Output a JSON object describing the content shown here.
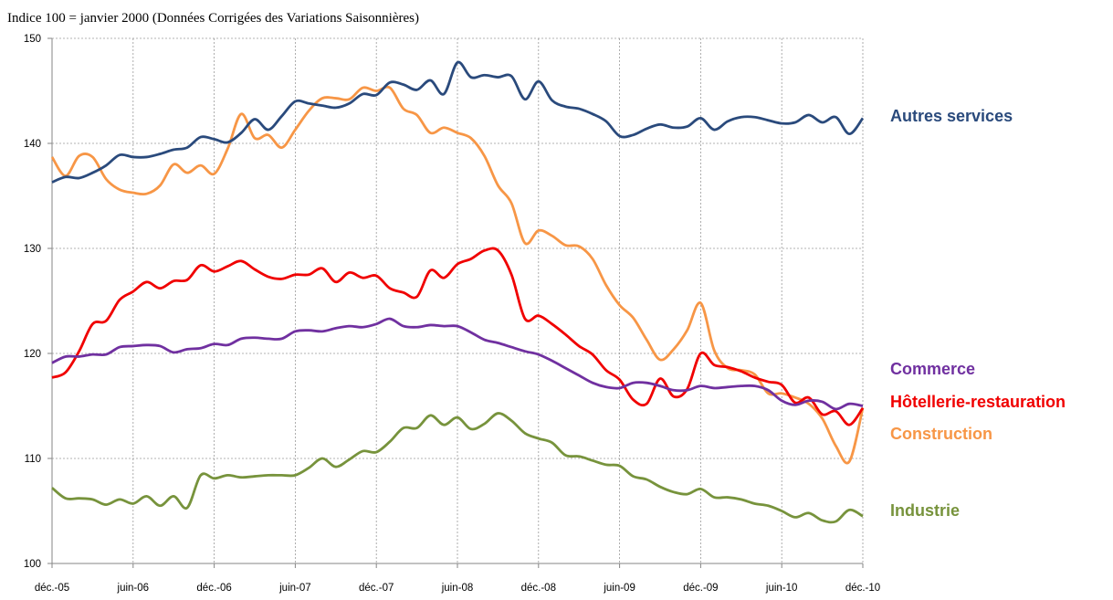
{
  "chart_data": {
    "type": "line",
    "title": "Indice 100 = janvier 2000 (Données Corrigées des Variations Saisonnières)",
    "categories": [
      "déc.-05",
      null,
      null,
      null,
      null,
      null,
      "juin-06",
      null,
      null,
      null,
      null,
      null,
      "déc.-06",
      null,
      null,
      null,
      null,
      null,
      "juin-07",
      null,
      null,
      null,
      null,
      null,
      "déc.-07",
      null,
      null,
      null,
      null,
      null,
      "juin-08",
      null,
      null,
      null,
      null,
      null,
      "déc.-08",
      null,
      null,
      null,
      null,
      null,
      "juin-09",
      null,
      null,
      null,
      null,
      null,
      "déc.-09",
      null,
      null,
      null,
      null,
      null,
      "juin-10",
      null,
      null,
      null,
      null,
      null,
      "déc.-10"
    ],
    "ylim": [
      100,
      150
    ],
    "yticks": [
      100,
      110,
      120,
      130,
      140,
      150
    ],
    "grid": true,
    "series": [
      {
        "name": "Autres services",
        "color": "#2a4a7c",
        "values": [
          136.3,
          136.8,
          136.7,
          137.2,
          137.9,
          138.9,
          138.7,
          138.7,
          139,
          139.4,
          139.6,
          140.6,
          140.4,
          140.1,
          141,
          142.3,
          141.3,
          142.6,
          144,
          143.8,
          143.6,
          143.4,
          143.8,
          144.7,
          144.6,
          145.8,
          145.6,
          145.1,
          146,
          144.7,
          147.7,
          146.3,
          146.5,
          146.3,
          146.4,
          144.2,
          145.9,
          144.1,
          143.5,
          143.3,
          142.8,
          142.1,
          140.7,
          140.8,
          141.4,
          141.8,
          141.5,
          141.6,
          142.4,
          141.3,
          142.1,
          142.5,
          142.5,
          142.2,
          141.9,
          142,
          142.7,
          142,
          142.5,
          140.9,
          142.4
        ]
      },
      {
        "name": "Commerce",
        "color": "#7030a0",
        "values": [
          119.1,
          119.7,
          119.7,
          119.9,
          119.9,
          120.6,
          120.7,
          120.8,
          120.7,
          120.1,
          120.4,
          120.5,
          120.9,
          120.8,
          121.4,
          121.5,
          121.4,
          121.4,
          122.1,
          122.2,
          122.1,
          122.4,
          122.6,
          122.5,
          122.8,
          123.3,
          122.6,
          122.5,
          122.7,
          122.6,
          122.6,
          122,
          121.3,
          121,
          120.6,
          120.2,
          119.9,
          119.3,
          118.6,
          117.9,
          117.2,
          116.8,
          116.7,
          117.2,
          117.2,
          116.9,
          116.5,
          116.5,
          116.9,
          116.7,
          116.8,
          116.9,
          116.9,
          116.5,
          115.5,
          115.1,
          115.5,
          115.4,
          114.7,
          115.2,
          115
        ]
      },
      {
        "name": "Hôtellerie-restauration",
        "color": "#f00000",
        "values": [
          117.7,
          118.2,
          120.2,
          122.8,
          123.1,
          125.1,
          125.9,
          126.8,
          126.2,
          126.9,
          127,
          128.4,
          127.8,
          128.3,
          128.8,
          128,
          127.3,
          127.1,
          127.5,
          127.5,
          128.1,
          126.8,
          127.7,
          127.2,
          127.4,
          126.2,
          125.8,
          125.4,
          127.9,
          127.2,
          128.5,
          129,
          129.8,
          129.8,
          127.5,
          123.3,
          123.6,
          122.8,
          121.8,
          120.7,
          119.9,
          118.4,
          117.5,
          115.6,
          115.2,
          117.6,
          115.9,
          116.6,
          120,
          118.9,
          118.7,
          118.3,
          117.7,
          117.3,
          117,
          115.3,
          115.8,
          114.2,
          114.5,
          113.2,
          114.8
        ]
      },
      {
        "name": "Construction",
        "color": "#f79646",
        "values": [
          138.7,
          136.9,
          138.8,
          138.7,
          136.6,
          135.6,
          135.3,
          135.2,
          136,
          138,
          137.2,
          137.9,
          137.1,
          139.5,
          142.8,
          140.5,
          140.8,
          139.6,
          141.3,
          143.1,
          144.3,
          144.3,
          144.2,
          145.3,
          145,
          145.3,
          143.3,
          142.7,
          141,
          141.5,
          141,
          140.5,
          138.8,
          136,
          134.3,
          130.5,
          131.7,
          131.2,
          130.3,
          130.2,
          129,
          126.5,
          124.6,
          123.4,
          121.3,
          119.4,
          120.4,
          122.2,
          124.8,
          120.3,
          118.6,
          118.4,
          118,
          116.2,
          116.2,
          115.8,
          115.2,
          113.8,
          111.2,
          109.7,
          114.8
        ]
      },
      {
        "name": "Industrie",
        "color": "#77933c",
        "values": [
          107.2,
          106.2,
          106.2,
          106.1,
          105.6,
          106.1,
          105.7,
          106.4,
          105.5,
          106.4,
          105.3,
          108.4,
          108.1,
          108.4,
          108.2,
          108.3,
          108.4,
          108.4,
          108.4,
          109.1,
          110,
          109.2,
          109.9,
          110.7,
          110.6,
          111.6,
          112.9,
          112.9,
          114.1,
          113.2,
          113.9,
          112.8,
          113.3,
          114.3,
          113.6,
          112.4,
          111.9,
          111.5,
          110.3,
          110.2,
          109.8,
          109.4,
          109.3,
          108.3,
          108,
          107.3,
          106.8,
          106.6,
          107.1,
          106.3,
          106.3,
          106.1,
          105.7,
          105.5,
          105,
          104.4,
          104.8,
          104.1,
          104,
          105.1,
          104.5
        ]
      }
    ]
  }
}
